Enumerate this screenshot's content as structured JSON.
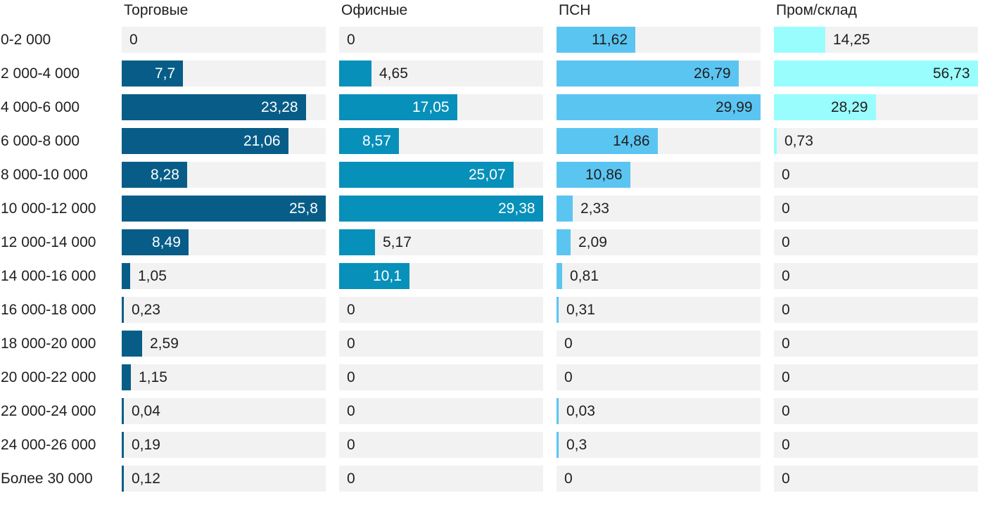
{
  "chart_data": {
    "type": "bar",
    "orientation": "horizontal",
    "title": "",
    "xlabel": "",
    "ylabel": "",
    "grid": false,
    "legend_position": "column-headers",
    "scaling": "each series scaled to its own max value",
    "value_decimal_separator": ",",
    "categories": [
      "0-2 000",
      "2 000-4 000",
      "4 000-6 000",
      "6 000-8 000",
      "8 000-10 000",
      "10 000-12 000",
      "12 000-14 000",
      "14 000-16 000",
      "16 000-18 000",
      "18 000-20 000",
      "20 000-22 000",
      "22 000-24 000",
      "24 000-26 000",
      "Более 30 000"
    ],
    "series": [
      {
        "name": "Торговые",
        "color": "#075d87",
        "inside_text_color": "#ffffff",
        "values": [
          "0",
          "7,7",
          "23,28",
          "21,06",
          "8,28",
          "25,8",
          "8,49",
          "1,05",
          "0,23",
          "2,59",
          "1,15",
          "0,04",
          "0,19",
          "0,12"
        ]
      },
      {
        "name": "Офисные",
        "color": "#0790ba",
        "inside_text_color": "#ffffff",
        "values": [
          "0",
          "4,65",
          "17,05",
          "8,57",
          "25,07",
          "29,38",
          "5,17",
          "10,1",
          "0",
          "0",
          "0",
          "0",
          "0",
          "0"
        ]
      },
      {
        "name": "ПСН",
        "color": "#5bc5f2",
        "inside_text_color": "#1f1f1f",
        "values": [
          "11,62",
          "26,79",
          "29,99",
          "14,86",
          "10,86",
          "2,33",
          "2,09",
          "0,81",
          "0,31",
          "0",
          "0",
          "0,03",
          "0,3",
          "0"
        ]
      },
      {
        "name": "Пром/склад",
        "color": "#99fdfd",
        "inside_text_color": "#1f1f1f",
        "values": [
          "14,25",
          "56,73",
          "28,29",
          "0,73",
          "0",
          "0",
          "0",
          "0",
          "0",
          "0",
          "0",
          "0",
          "0",
          "0"
        ]
      }
    ],
    "colors": {
      "track_background": "#f2f2f2",
      "label_text": "#1f1f1f"
    }
  }
}
